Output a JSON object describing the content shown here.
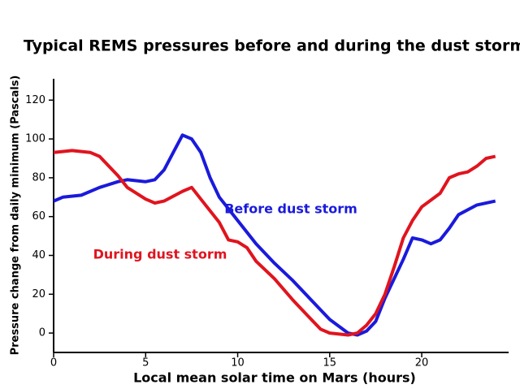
{
  "chart_data": {
    "type": "line",
    "title": "Typical REMS pressures before and during the dust storm",
    "x_label": "Local mean solar time on Mars (hours)",
    "y_label": "Pressure change from daily minimum (Pascals)",
    "xlim": [
      0,
      24.5
    ],
    "xticks": [
      0,
      5,
      10,
      15,
      20
    ],
    "ylim": [
      -10,
      131
    ],
    "yticks": [
      0,
      20,
      40,
      60,
      80,
      100,
      120
    ],
    "grid": false,
    "series": [
      {
        "name": "Before dust storm",
        "color": "#1a1adc",
        "x": [
          0,
          0.5,
          1.5,
          2.5,
          3.5,
          4,
          5,
          5.5,
          6,
          6.5,
          7,
          7.5,
          8,
          8.5,
          9,
          10,
          11,
          12,
          13,
          14,
          15,
          16,
          16.5,
          17,
          17.5,
          18,
          19,
          19.5,
          20,
          20.5,
          21,
          21.5,
          22,
          23,
          24
        ],
        "values": [
          68,
          70,
          71,
          75,
          78,
          79,
          78,
          79,
          84,
          93,
          102,
          100,
          93,
          80,
          70,
          58,
          46,
          36,
          27,
          17,
          7,
          0,
          -1,
          1,
          6,
          18,
          38,
          49,
          48,
          46,
          48,
          54,
          61,
          66,
          68
        ]
      },
      {
        "name": "During dust storm",
        "color": "#e0141e",
        "x": [
          0,
          1,
          2,
          2.5,
          3,
          3.5,
          4,
          5,
          5.5,
          6,
          7,
          7.5,
          8,
          9,
          9.5,
          10,
          10.5,
          11,
          12,
          13,
          14,
          14.5,
          15,
          16,
          16.5,
          17,
          17.5,
          18,
          18.5,
          19,
          19.5,
          20,
          21,
          21.5,
          22,
          22.5,
          23,
          23.5,
          24
        ],
        "values": [
          93,
          94,
          93,
          91,
          86,
          81,
          75,
          69,
          67,
          68,
          73,
          75,
          69,
          57,
          48,
          47,
          44,
          37,
          28,
          17,
          7,
          2,
          0,
          -1,
          0,
          4,
          10,
          20,
          34,
          49,
          58,
          65,
          72,
          80,
          82,
          83,
          86,
          90,
          91
        ]
      }
    ]
  }
}
